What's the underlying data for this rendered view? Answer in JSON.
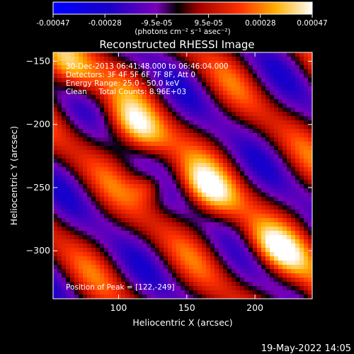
{
  "chart_data": {
    "type": "heatmap",
    "title": "Reconstructed RHESSI Image",
    "xlabel": "Heliocentric X (arcsec)",
    "ylabel": "Heliocentric Y (arcsec)",
    "xlim": [
      52,
      242
    ],
    "ylim": [
      -338,
      -143
    ],
    "xticks": [
      100,
      150,
      200
    ],
    "yticks": [
      -150,
      -200,
      -250,
      -300
    ],
    "colorbar": {
      "ticks": [
        "-0.00047",
        "-0.00028",
        "-9.5e-05",
        "9.5e-05",
        "0.00028",
        "0.00047"
      ],
      "range": [
        -0.00047,
        0.00047
      ],
      "unit_label": "(photons cm⁻² s⁻¹ asec⁻²)"
    },
    "annotations": [
      "30-Dec-2013 06:41:48.000 to 06:46:04.000",
      "Detectors: 3F 4F 5F 6F 7F 8F, Att 0",
      "Energy Range: 25.0 - 50.0 keV",
      "Clean     Total Counts: 8.96E+03"
    ],
    "peak": {
      "label": "Position of Peak = [122,-249]",
      "x": 122,
      "y": -249
    },
    "timestamp": "19-May-2022 14:05"
  }
}
